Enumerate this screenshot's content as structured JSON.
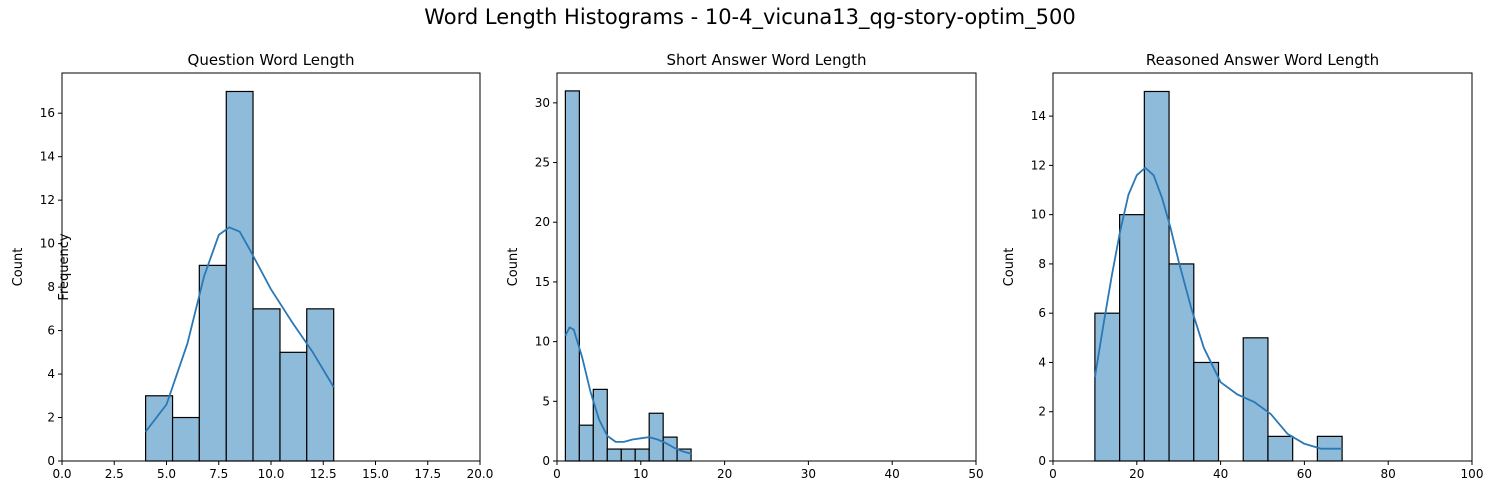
{
  "suptitle": "Word Length Histograms - 10-4_vicuna13_qg-story-optim_500",
  "chart_data": [
    {
      "type": "bar",
      "title": "Question Word Length",
      "xlabel": "",
      "ylabel": "Count",
      "overlay_label": "Frequency",
      "xlim": [
        0,
        20
      ],
      "ylim": [
        0,
        17.85
      ],
      "xticks": [
        0,
        2.5,
        5,
        7.5,
        10,
        12.5,
        15,
        17.5,
        20
      ],
      "xtick_labels": [
        "0.0",
        "2.5",
        "5.0",
        "7.5",
        "10.0",
        "12.5",
        "15.0",
        "17.5",
        "20.0"
      ],
      "yticks": [
        0,
        2,
        4,
        6,
        8,
        10,
        12,
        14,
        16
      ],
      "bins": [
        {
          "x0": 4.0,
          "x1": 5.29,
          "count": 3
        },
        {
          "x0": 5.29,
          "x1": 6.57,
          "count": 2
        },
        {
          "x0": 6.57,
          "x1": 7.86,
          "count": 9
        },
        {
          "x0": 7.86,
          "x1": 9.14,
          "count": 17
        },
        {
          "x0": 9.14,
          "x1": 10.43,
          "count": 7
        },
        {
          "x0": 10.43,
          "x1": 11.71,
          "count": 5
        },
        {
          "x0": 11.71,
          "x1": 13.0,
          "count": 7
        }
      ],
      "kde": {
        "x": [
          4.0,
          5.0,
          6.0,
          6.8,
          7.5,
          8.0,
          8.5,
          9.0,
          10.0,
          11.0,
          12.0,
          13.0
        ],
        "y": [
          1.35,
          2.6,
          5.4,
          8.5,
          10.4,
          10.75,
          10.55,
          9.7,
          7.9,
          6.4,
          5.0,
          3.4
        ]
      }
    },
    {
      "type": "bar",
      "title": "Short Answer Word Length",
      "xlabel": "",
      "ylabel": "Count",
      "xlim": [
        0,
        50
      ],
      "ylim": [
        0,
        32.5
      ],
      "xticks": [
        0,
        10,
        20,
        30,
        40,
        50
      ],
      "xtick_labels": [
        "0",
        "10",
        "20",
        "30",
        "40",
        "50"
      ],
      "yticks": [
        0,
        5,
        10,
        15,
        20,
        25,
        30
      ],
      "bins": [
        {
          "x0": 1.0,
          "x1": 2.67,
          "count": 31
        },
        {
          "x0": 2.67,
          "x1": 4.33,
          "count": 3
        },
        {
          "x0": 4.33,
          "x1": 6.0,
          "count": 6
        },
        {
          "x0": 6.0,
          "x1": 7.67,
          "count": 1
        },
        {
          "x0": 7.67,
          "x1": 9.33,
          "count": 1
        },
        {
          "x0": 9.33,
          "x1": 11.0,
          "count": 1
        },
        {
          "x0": 11.0,
          "x1": 12.67,
          "count": 4
        },
        {
          "x0": 12.67,
          "x1": 14.33,
          "count": 2
        },
        {
          "x0": 14.33,
          "x1": 16.0,
          "count": 1
        }
      ],
      "kde": {
        "x": [
          1.0,
          1.5,
          2.0,
          3.0,
          4.0,
          5.0,
          6.0,
          7.0,
          8.0,
          9.0,
          10.0,
          11.0,
          12.0,
          13.0,
          14.0,
          15.0,
          16.0
        ],
        "y": [
          10.5,
          11.2,
          11.0,
          8.7,
          5.8,
          3.5,
          2.1,
          1.6,
          1.6,
          1.8,
          1.9,
          2.0,
          1.8,
          1.5,
          1.1,
          0.8,
          0.6
        ]
      }
    },
    {
      "type": "bar",
      "title": "Reasoned Answer Word Length",
      "xlabel": "",
      "ylabel": "Count",
      "xlim": [
        0,
        100
      ],
      "ylim": [
        0,
        15.75
      ],
      "xticks": [
        0,
        20,
        40,
        60,
        80,
        100
      ],
      "xtick_labels": [
        "0",
        "20",
        "40",
        "60",
        "80",
        "100"
      ],
      "yticks": [
        0,
        2,
        4,
        6,
        8,
        10,
        12,
        14
      ],
      "bins": [
        {
          "x0": 10.0,
          "x1": 15.9,
          "count": 6
        },
        {
          "x0": 15.9,
          "x1": 21.8,
          "count": 10
        },
        {
          "x0": 21.8,
          "x1": 27.7,
          "count": 15
        },
        {
          "x0": 27.7,
          "x1": 33.6,
          "count": 8
        },
        {
          "x0": 33.6,
          "x1": 39.5,
          "count": 4
        },
        {
          "x0": 39.5,
          "x1": 45.4,
          "count": 0
        },
        {
          "x0": 45.4,
          "x1": 51.3,
          "count": 5
        },
        {
          "x0": 51.3,
          "x1": 57.2,
          "count": 1
        },
        {
          "x0": 57.2,
          "x1": 63.1,
          "count": 0
        },
        {
          "x0": 63.1,
          "x1": 69.0,
          "count": 1
        }
      ],
      "kde": {
        "x": [
          10,
          12,
          14,
          16,
          18,
          20,
          22,
          24,
          26,
          28,
          30,
          33,
          36,
          40,
          44,
          48,
          52,
          56,
          60,
          64,
          69
        ],
        "y": [
          3.4,
          5.5,
          7.5,
          9.3,
          10.8,
          11.6,
          11.9,
          11.6,
          10.7,
          9.5,
          8.1,
          6.2,
          4.6,
          3.2,
          2.7,
          2.4,
          1.9,
          1.1,
          0.7,
          0.5,
          0.5
        ]
      }
    }
  ],
  "colors": {
    "bar_fill": "#8fbbdb",
    "bar_edge": "#000000",
    "kde_line": "#2a78b5"
  }
}
